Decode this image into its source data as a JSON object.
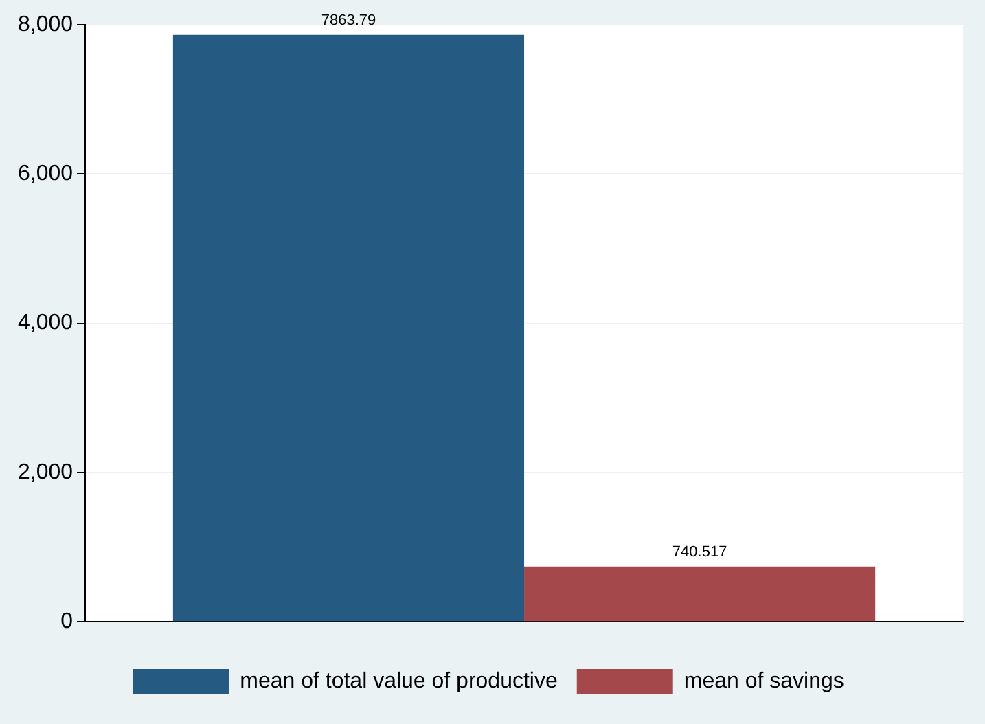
{
  "chart_data": {
    "type": "bar",
    "categories": [
      null
    ],
    "series": [
      {
        "name": "mean of total value of productive",
        "color": "#255b82",
        "values": [
          7863.79
        ]
      },
      {
        "name": "mean of savings",
        "color": "#a5484c",
        "values": [
          740.517
        ]
      }
    ],
    "ylim": [
      0,
      8000
    ],
    "yticks": [
      {
        "value": 0,
        "label": "0"
      },
      {
        "value": 2000,
        "label": "2,000"
      },
      {
        "value": 4000,
        "label": "4,000"
      },
      {
        "value": 6000,
        "label": "6,000"
      },
      {
        "value": 8000,
        "label": "8,000"
      }
    ],
    "grid": "y",
    "legend": "bottom",
    "data_labels": true
  }
}
